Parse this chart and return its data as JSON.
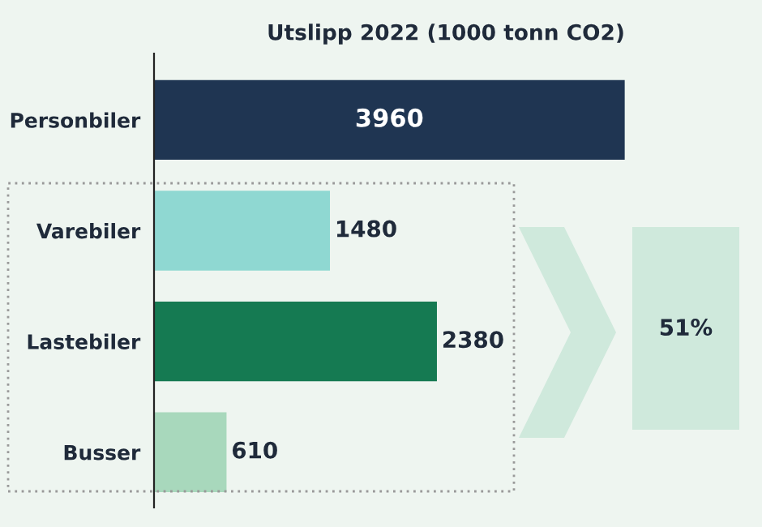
{
  "chart_data": {
    "type": "bar",
    "orientation": "horizontal",
    "title": "Utslipp 2022 (1000 tonn CO2)",
    "categories": [
      "Personbiler",
      "Varebiler",
      "Lastebiler",
      "Busser"
    ],
    "values": [
      3960,
      1480,
      2380,
      610
    ],
    "colors": [
      "#1f3552",
      "#8fd8d2",
      "#157a52",
      "#a8d8bc"
    ],
    "data_labels": true,
    "grid": false,
    "legend": false,
    "annotations": [
      "51%"
    ]
  }
}
